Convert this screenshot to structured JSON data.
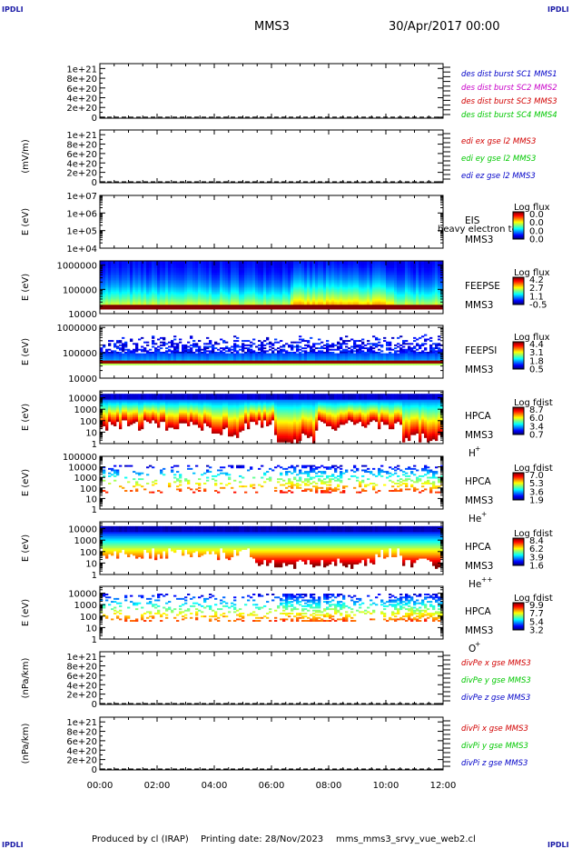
{
  "header": {
    "corner_label": "IPDLI",
    "spacecraft": "MMS3",
    "datetime": "30/Apr/2017 00:00"
  },
  "footer": {
    "produced_by": "Produced by cl (IRAP)",
    "printing_date": "Printing date: 28/Nov/2023",
    "script": "mms_mms3_srvy_vue_web2.cl"
  },
  "colors": {
    "mms1": "#0000c8",
    "mms2": "#c800c8",
    "mms3": "#d20000",
    "mms4": "#00c800",
    "x": "#d20000",
    "y": "#00c800",
    "z": "#0000c8"
  },
  "chart_data": [
    {
      "type": "line",
      "ylabel": "",
      "ylim": [
        -2e+19,
        1.1e+21
      ],
      "yticks": [
        "1e+21",
        "8e+20",
        "6e+20",
        "4e+20",
        "2e+20",
        "0"
      ],
      "ytick_values": [
        1e+21,
        8e+20,
        6e+20,
        4e+20,
        2e+20,
        0
      ],
      "zero_line": "dashed",
      "series": [
        {
          "name": "des dist burst SC1 MMS1",
          "color": "mms1"
        },
        {
          "name": "des dist burst SC2 MMS2",
          "color": "mms2"
        },
        {
          "name": "des dist burst SC3 MMS3",
          "color": "mms3"
        },
        {
          "name": "des dist burst SC4 MMS4",
          "color": "mms4"
        }
      ]
    },
    {
      "type": "line",
      "ylabel": "(mV/m)",
      "ylim": [
        -2e+19,
        1.1e+21
      ],
      "yticks": [
        "1e+21",
        "8e+20",
        "6e+20",
        "4e+20",
        "2e+20",
        "0"
      ],
      "ytick_values": [
        1e+21,
        8e+20,
        6e+20,
        4e+20,
        2e+20,
        0
      ],
      "zero_line": "dashed",
      "series": [
        {
          "name": "edi ex gse l2 MMS3",
          "color": "x"
        },
        {
          "name": "edi ey gse l2 MMS3",
          "color": "y"
        },
        {
          "name": "edi ez gse l2 MMS3",
          "color": "z"
        }
      ]
    },
    {
      "type": "heatmap",
      "ylabel": "E (eV)",
      "scale": "log",
      "ylim": [
        10000.0,
        10000000.0
      ],
      "yticks": [
        "1e+07",
        "1e+06",
        "1e+05",
        "1e+04"
      ],
      "ytick_values": [
        10000000.0,
        1000000.0,
        100000.0,
        10000.0
      ],
      "instrument": "EIS",
      "note": "heavy electron to",
      "spacecraft": "MMS3",
      "colorbar_title": "Log flux",
      "colorbar_ticks": [
        "0.0",
        "0.0",
        "0.0",
        "0.0"
      ],
      "intensity_profile": "none"
    },
    {
      "type": "heatmap",
      "ylabel": "E (eV)",
      "scale": "log",
      "ylim": [
        10000.0,
        1500000.0
      ],
      "yticks": [
        "1000000",
        "100000",
        "10000"
      ],
      "ytick_values": [
        1000000.0,
        100000.0,
        10000.0
      ],
      "instrument": "FEEPSE",
      "spacecraft": "MMS3",
      "colorbar_title": "Log flux",
      "colorbar_ticks": [
        "4.2",
        "2.7",
        "1.1",
        "-0.5"
      ],
      "intensity_profile": "feepse"
    },
    {
      "type": "heatmap",
      "ylabel": "E (eV)",
      "scale": "log",
      "ylim": [
        10000.0,
        1200000.0
      ],
      "yticks": [
        "1000000",
        "100000",
        "10000"
      ],
      "ytick_values": [
        1000000.0,
        100000.0,
        10000.0
      ],
      "instrument": "FEEPSI",
      "spacecraft": "MMS3",
      "colorbar_title": "Log flux",
      "colorbar_ticks": [
        "4.4",
        "3.1",
        "1.8",
        "0.5"
      ],
      "intensity_profile": "feepsi"
    },
    {
      "type": "heatmap",
      "ylabel": "E (eV)",
      "scale": "log",
      "ylim": [
        1,
        40000.0
      ],
      "yticks": [
        "10000",
        "1000",
        "100",
        "10",
        "1"
      ],
      "ytick_values": [
        10000.0,
        1000.0,
        100.0,
        10.0,
        1
      ],
      "instrument": "HPCA",
      "spacecraft": "MMS3",
      "species": "H",
      "species_charge": "+",
      "colorbar_title": "Log fdist",
      "colorbar_ticks": [
        "8.7",
        "6.0",
        "3.4",
        "0.7"
      ],
      "intensity_profile": "hplus"
    },
    {
      "type": "heatmap",
      "ylabel": "E (eV)",
      "scale": "log",
      "ylim": [
        1,
        100000.0
      ],
      "yticks": [
        "100000",
        "10000",
        "1000",
        "100",
        "10",
        "1"
      ],
      "ytick_values": [
        100000.0,
        10000.0,
        1000.0,
        100.0,
        10.0,
        1
      ],
      "instrument": "HPCA",
      "spacecraft": "MMS3",
      "species": "He",
      "species_charge": "+",
      "colorbar_title": "Log fdist",
      "colorbar_ticks": [
        "7.0",
        "5.3",
        "3.6",
        "1.9"
      ],
      "intensity_profile": "heplus"
    },
    {
      "type": "heatmap",
      "ylabel": "E (eV)",
      "scale": "log",
      "ylim": [
        1,
        40000.0
      ],
      "yticks": [
        "10000",
        "1000",
        "100",
        "10",
        "1"
      ],
      "ytick_values": [
        10000.0,
        1000.0,
        100.0,
        10.0,
        1
      ],
      "instrument": "HPCA",
      "spacecraft": "MMS3",
      "species": "He",
      "species_charge": "++",
      "colorbar_title": "Log fdist",
      "colorbar_ticks": [
        "8.4",
        "6.2",
        "3.9",
        "1.6"
      ],
      "intensity_profile": "heplusplus"
    },
    {
      "type": "heatmap",
      "ylabel": "E (eV)",
      "scale": "log",
      "ylim": [
        1,
        40000.0
      ],
      "yticks": [
        "10000",
        "1000",
        "100",
        "10",
        "1"
      ],
      "ytick_values": [
        10000.0,
        1000.0,
        100.0,
        10.0,
        1
      ],
      "instrument": "HPCA",
      "spacecraft": "MMS3",
      "species": "O",
      "species_charge": "+",
      "colorbar_title": "Log fdist",
      "colorbar_ticks": [
        "9.9",
        "7.7",
        "5.4",
        "3.2"
      ],
      "intensity_profile": "oplus"
    },
    {
      "type": "line",
      "ylabel": "(nPa/km)",
      "ylim": [
        -2e+19,
        1.1e+21
      ],
      "yticks": [
        "1e+21",
        "8e+20",
        "6e+20",
        "4e+20",
        "2e+20",
        "0"
      ],
      "ytick_values": [
        1e+21,
        8e+20,
        6e+20,
        4e+20,
        2e+20,
        0
      ],
      "zero_line": "dashed",
      "series": [
        {
          "name": "divPe x gse MMS3",
          "color": "x"
        },
        {
          "name": "divPe y gse MMS3",
          "color": "y"
        },
        {
          "name": "divPe z gse MMS3",
          "color": "z"
        }
      ]
    },
    {
      "type": "line",
      "ylabel": "(nPa/km)",
      "ylim": [
        -2e+19,
        1.1e+21
      ],
      "yticks": [
        "1e+21",
        "8e+20",
        "6e+20",
        "4e+20",
        "2e+20",
        "0"
      ],
      "ytick_values": [
        1e+21,
        8e+20,
        6e+20,
        4e+20,
        2e+20,
        0
      ],
      "zero_line": "dashed",
      "series": [
        {
          "name": "divPi x gse MMS3",
          "color": "x"
        },
        {
          "name": "divPi y gse MMS3",
          "color": "y"
        },
        {
          "name": "divPi z gse MMS3",
          "color": "z"
        }
      ]
    }
  ],
  "time_axis": {
    "ticks": [
      "00:00",
      "02:00",
      "04:00",
      "06:00",
      "08:00",
      "10:00",
      "12:00"
    ],
    "range_hours": [
      0,
      12
    ]
  }
}
